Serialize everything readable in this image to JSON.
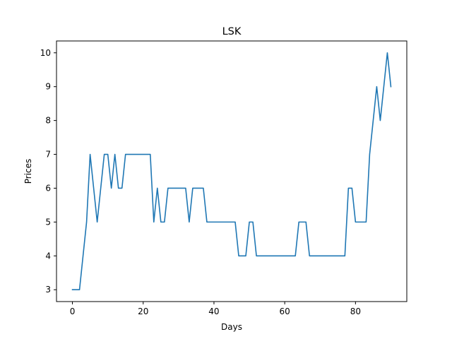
{
  "chart_data": {
    "type": "line",
    "title": "LSK",
    "xlabel": "Days",
    "ylabel": "Prices",
    "xlim": [
      -4.5,
      94.5
    ],
    "ylim": [
      2.65,
      10.35
    ],
    "xticks": [
      0,
      20,
      40,
      60,
      80
    ],
    "yticks": [
      3,
      4,
      5,
      6,
      7,
      8,
      9,
      10
    ],
    "grid": false,
    "line_color": "#1f77b4",
    "series": [
      {
        "x": [
          0,
          1,
          2,
          3,
          4,
          5,
          6,
          7,
          8,
          9,
          10,
          11,
          12,
          13,
          14,
          15,
          16,
          17,
          18,
          19,
          20,
          21,
          22,
          23,
          24,
          25,
          26,
          27,
          28,
          29,
          30,
          31,
          32,
          33,
          34,
          35,
          36,
          37,
          38,
          39,
          40,
          41,
          42,
          43,
          44,
          45,
          46,
          47,
          48,
          49,
          50,
          51,
          52,
          53,
          54,
          55,
          56,
          57,
          58,
          59,
          60,
          61,
          62,
          63,
          64,
          65,
          66,
          67,
          68,
          69,
          70,
          71,
          72,
          73,
          74,
          75,
          76,
          77,
          78,
          79,
          80,
          81,
          82,
          83,
          84,
          85,
          86,
          87,
          88,
          89,
          90
        ],
        "values": [
          3,
          3,
          3,
          4,
          5,
          7,
          6,
          5,
          6,
          7,
          7,
          6,
          7,
          6,
          6,
          7,
          7,
          7,
          7,
          7,
          7,
          7,
          7,
          5,
          6,
          5,
          5,
          6,
          6,
          6,
          6,
          6,
          6,
          5,
          6,
          6,
          6,
          6,
          5,
          5,
          5,
          5,
          5,
          5,
          5,
          5,
          5,
          4,
          4,
          4,
          5,
          5,
          4,
          4,
          4,
          4,
          4,
          4,
          4,
          4,
          4,
          4,
          4,
          4,
          5,
          5,
          5,
          4,
          4,
          4,
          4,
          4,
          4,
          4,
          4,
          4,
          4,
          4,
          6,
          6,
          5,
          5,
          5,
          5,
          7,
          8,
          9,
          8,
          9,
          10,
          9
        ]
      }
    ]
  }
}
